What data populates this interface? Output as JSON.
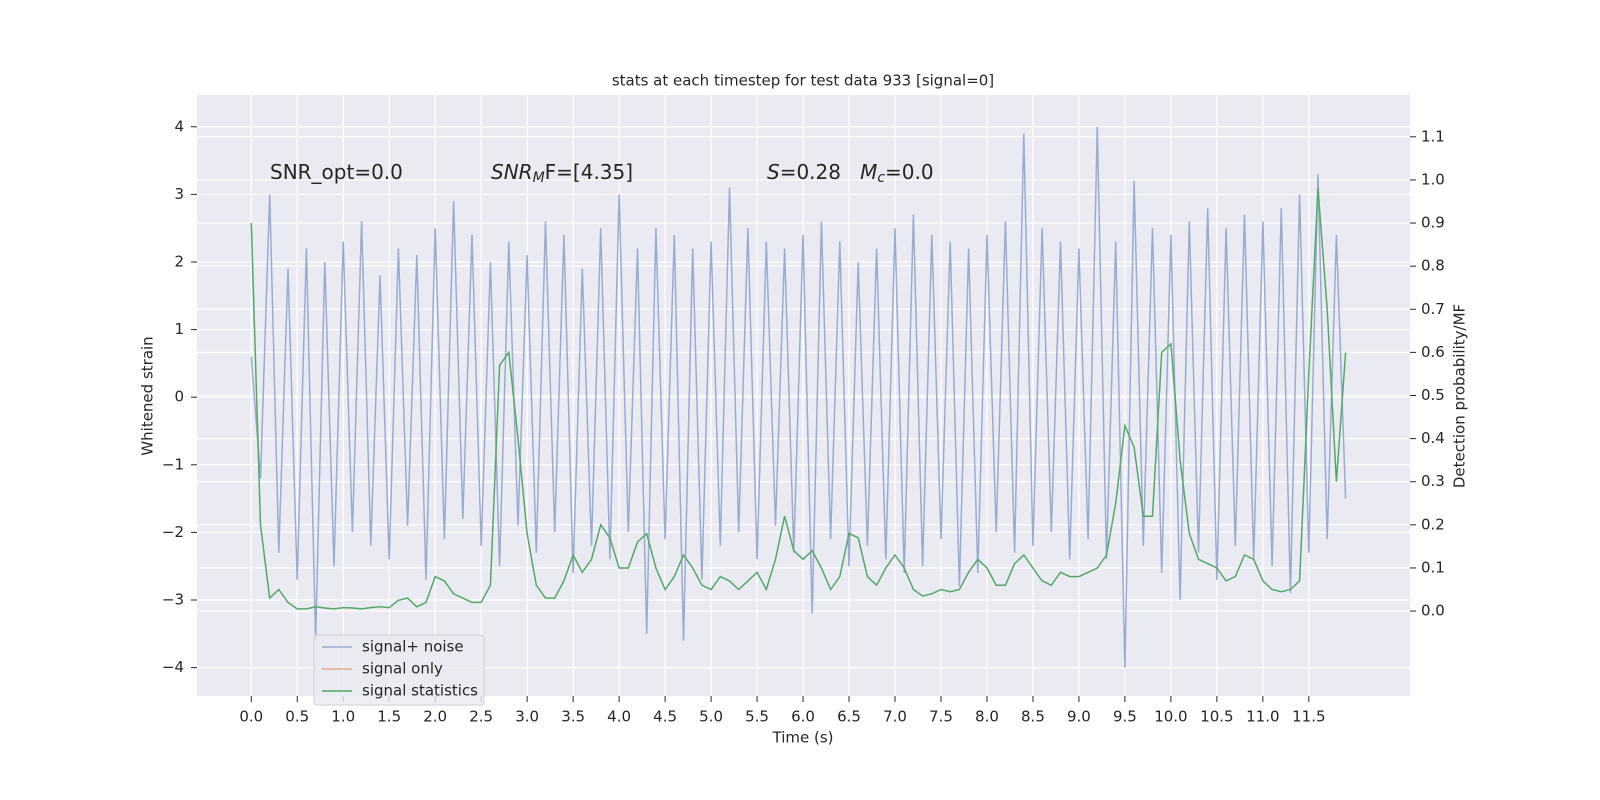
{
  "chart_data": {
    "type": "line",
    "title": "stats at each timestep for test data 933 [signal=0]",
    "xlabel": "Time (s)",
    "ylabel": "Whitened strain",
    "y2label": "Detection probability/MF",
    "annotations": [
      [
        {
          "t": "SNR_opt=0.0",
          "style": "normal"
        }
      ],
      [
        {
          "t": "SNR",
          "style": "italic"
        },
        {
          "t": "M",
          "style": "sub"
        },
        {
          "t": "F=[4.35]",
          "style": "normal"
        }
      ],
      [
        {
          "t": "S",
          "style": "italic"
        },
        {
          "t": "=0.28   ",
          "style": "normal"
        },
        {
          "t": "M",
          "style": "italic"
        },
        {
          "t": "c",
          "style": "sub"
        },
        {
          "t": "=0.0",
          "style": "normal"
        }
      ]
    ],
    "x": [
      0,
      0.1,
      0.2,
      0.3,
      0.4,
      0.5,
      0.6,
      0.7,
      0.8,
      0.9,
      1,
      1.1,
      1.2,
      1.3,
      1.4,
      1.5,
      1.6,
      1.7,
      1.8,
      1.9,
      2,
      2.1,
      2.2,
      2.3,
      2.4,
      2.5,
      2.6,
      2.7,
      2.8,
      2.9,
      3,
      3.1,
      3.2,
      3.3,
      3.4,
      3.5,
      3.6,
      3.7,
      3.8,
      3.9,
      4,
      4.1,
      4.2,
      4.3,
      4.4,
      4.5,
      4.6,
      4.7,
      4.8,
      4.9,
      5,
      5.1,
      5.2,
      5.3,
      5.4,
      5.5,
      5.6,
      5.7,
      5.8,
      5.9,
      6,
      6.1,
      6.2,
      6.3,
      6.4,
      6.5,
      6.6,
      6.7,
      6.8,
      6.9,
      7,
      7.1,
      7.2,
      7.3,
      7.4,
      7.5,
      7.6,
      7.7,
      7.8,
      7.9,
      8,
      8.1,
      8.2,
      8.3,
      8.4,
      8.5,
      8.6,
      8.7,
      8.8,
      8.9,
      9,
      9.1,
      9.2,
      9.3,
      9.4,
      9.5,
      9.6,
      9.7,
      9.8,
      9.9,
      10,
      10.1,
      10.2,
      10.3,
      10.4,
      10.5,
      10.6,
      10.7,
      10.8,
      10.9,
      11,
      11.1,
      11.2,
      11.3,
      11.4,
      11.5,
      11.6,
      11.7,
      11.8,
      11.9
    ],
    "series": [
      {
        "name": "signal+ noise",
        "color": "#9aabd0",
        "axis": "y",
        "values": [
          0.6,
          -1.2,
          3.0,
          -2.3,
          1.9,
          -2.7,
          2.2,
          -3.6,
          2.0,
          -2.5,
          2.3,
          -2.0,
          2.6,
          -2.2,
          1.8,
          -2.4,
          2.2,
          -1.9,
          2.1,
          -2.7,
          2.5,
          -2.1,
          2.9,
          -1.8,
          2.4,
          -2.2,
          2.0,
          -2.5,
          2.3,
          -1.9,
          2.1,
          -2.3,
          2.6,
          -2.0,
          2.4,
          -2.6,
          1.9,
          -2.2,
          2.5,
          -2.4,
          3.0,
          -2.0,
          2.2,
          -3.5,
          2.5,
          -2.1,
          2.4,
          -3.6,
          2.2,
          -2.7,
          2.3,
          -2.2,
          3.1,
          -2.0,
          2.5,
          -2.4,
          2.3,
          -1.9,
          2.2,
          -2.3,
          2.4,
          -3.2,
          2.6,
          -2.1,
          2.3,
          -2.5,
          2.0,
          -2.2,
          2.2,
          -2.4,
          2.5,
          -2.6,
          2.7,
          -2.5,
          2.4,
          -2.1,
          2.3,
          -2.8,
          2.2,
          -2.6,
          2.4,
          -2.0,
          2.6,
          -2.3,
          3.9,
          -2.2,
          2.5,
          -2.0,
          2.3,
          -2.4,
          2.2,
          -2.1,
          4.0,
          -2.4,
          2.3,
          -4.0,
          3.2,
          -2.2,
          2.5,
          -2.6,
          2.4,
          -3.0,
          2.6,
          -2.3,
          2.8,
          -2.7,
          2.5,
          -2.2,
          2.7,
          -2.4,
          2.6,
          -2.5,
          2.8,
          -2.9,
          3.0,
          -2.3,
          3.3,
          -2.1,
          2.4,
          -1.5
        ]
      },
      {
        "name": "signal only",
        "color": "#e8a98a",
        "axis": "y",
        "values": [
          null,
          null,
          null,
          null,
          null,
          null,
          null,
          null,
          null,
          null,
          null,
          null,
          null,
          null,
          null,
          null,
          null,
          null,
          null,
          null,
          null,
          null,
          null,
          null,
          null,
          null,
          null,
          null,
          null,
          null,
          null,
          null,
          null,
          null,
          null,
          null,
          null,
          null,
          null,
          null,
          null,
          null,
          null,
          null,
          null,
          null,
          null,
          null,
          null,
          null,
          null,
          null,
          null,
          null,
          null,
          null,
          null,
          null,
          null,
          null,
          null,
          null,
          null,
          null,
          null,
          null,
          null,
          null,
          null,
          null,
          null,
          null,
          null,
          null,
          null,
          null,
          null,
          null,
          null,
          null,
          null,
          null,
          null,
          null,
          null,
          null,
          null,
          null,
          null,
          null,
          null,
          null,
          null,
          null,
          null,
          null,
          null,
          null,
          null,
          null,
          null,
          null,
          null,
          null,
          null,
          null,
          null,
          null,
          null,
          null,
          null,
          null,
          null,
          null,
          null,
          null,
          null,
          null,
          null,
          null
        ]
      },
      {
        "name": "signal statistics",
        "color": "#55a868",
        "axis": "y2",
        "values": [
          0.9,
          0.2,
          0.03,
          0.05,
          0.02,
          0.005,
          0.005,
          0.01,
          0.007,
          0.005,
          0.008,
          0.007,
          0.005,
          0.008,
          0.01,
          0.008,
          0.025,
          0.03,
          0.01,
          0.02,
          0.08,
          0.07,
          0.04,
          0.03,
          0.02,
          0.02,
          0.06,
          0.57,
          0.6,
          0.4,
          0.18,
          0.06,
          0.03,
          0.03,
          0.07,
          0.13,
          0.09,
          0.12,
          0.2,
          0.17,
          0.1,
          0.1,
          0.16,
          0.18,
          0.1,
          0.05,
          0.08,
          0.13,
          0.1,
          0.06,
          0.05,
          0.08,
          0.07,
          0.05,
          0.07,
          0.09,
          0.05,
          0.12,
          0.22,
          0.14,
          0.12,
          0.14,
          0.1,
          0.05,
          0.08,
          0.18,
          0.17,
          0.08,
          0.06,
          0.1,
          0.13,
          0.1,
          0.05,
          0.035,
          0.04,
          0.05,
          0.045,
          0.05,
          0.09,
          0.12,
          0.1,
          0.06,
          0.06,
          0.11,
          0.13,
          0.1,
          0.07,
          0.06,
          0.09,
          0.08,
          0.08,
          0.09,
          0.1,
          0.13,
          0.25,
          0.43,
          0.38,
          0.22,
          0.22,
          0.6,
          0.62,
          0.35,
          0.18,
          0.12,
          0.11,
          0.1,
          0.07,
          0.08,
          0.13,
          0.12,
          0.07,
          0.05,
          0.045,
          0.05,
          0.07,
          0.55,
          0.98,
          0.7,
          0.3,
          0.6
        ]
      }
    ],
    "xlim": [
      -0.59,
      12.6
    ],
    "ylim": [
      -4.42,
      4.47
    ],
    "y2lim": [
      -0.197,
      1.197
    ],
    "xticks": [
      {
        "value": 0,
        "label": "0.0"
      },
      0.5,
      {
        "value": 1,
        "label": "1.0"
      },
      1.5,
      {
        "value": 2,
        "label": "2.0"
      },
      2.5,
      {
        "value": 3,
        "label": "3.0"
      },
      3.5,
      {
        "value": 4,
        "label": "4.0"
      },
      4.5,
      {
        "value": 5,
        "label": "5.0"
      },
      5.5,
      {
        "value": 6,
        "label": "6.0"
      },
      6.5,
      {
        "value": 7,
        "label": "7.0"
      },
      7.5,
      {
        "value": 8,
        "label": "8.0"
      },
      8.5,
      {
        "value": 9,
        "label": "9.0"
      },
      9.5,
      {
        "value": 10,
        "label": "10.0"
      },
      10.5,
      {
        "value": 11,
        "label": "11.0"
      },
      11.5
    ],
    "yticks": [
      {
        "value": -4,
        "label": "−4"
      },
      {
        "value": -3,
        "label": "−3"
      },
      {
        "value": -2,
        "label": "−2"
      },
      {
        "value": -1,
        "label": "−1"
      },
      0,
      1,
      2,
      3,
      4
    ],
    "y2ticks": [
      {
        "value": 0,
        "label": "0.0"
      },
      0.1,
      0.2,
      0.3,
      0.4,
      0.5,
      0.6,
      0.7,
      0.8,
      0.9,
      {
        "value": 1,
        "label": "1.0"
      },
      1.1
    ],
    "grid": true,
    "legend": "lower left"
  }
}
